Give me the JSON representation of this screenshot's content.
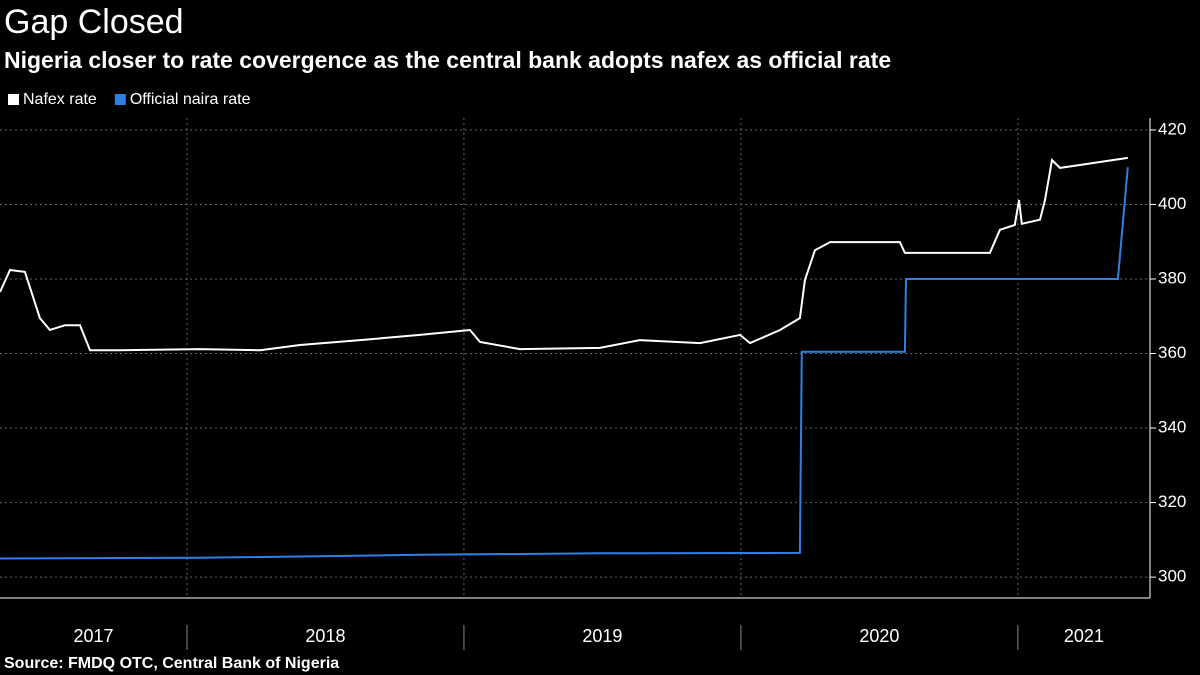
{
  "chart_data": {
    "type": "line",
    "title": "Gap Closed",
    "subtitle": "Nigeria closer to rate covergence as the central bank adopts nafex as official rate",
    "source": "Source: FMDQ OTC, Central Bank of Nigeria",
    "xlim": [
      2017.325,
      2021.477
    ],
    "xticks": [
      {
        "value": 2017,
        "label": "2017"
      },
      {
        "value": 2018,
        "label": "2018"
      },
      {
        "value": 2019,
        "label": "2019"
      },
      {
        "value": 2020,
        "label": "2020"
      },
      {
        "value": 2021,
        "label": "2021"
      }
    ],
    "ylim": [
      294.4,
      423.2
    ],
    "yticks": [
      300,
      320,
      340,
      360,
      380,
      400,
      420
    ],
    "grid": true,
    "series": [
      {
        "name": "Nafex rate",
        "color": "#ffffff",
        "x": [
          2017.325,
          2017.361,
          2017.415,
          2017.469,
          2017.505,
          2017.56,
          2017.614,
          2017.65,
          2017.758,
          2018.047,
          2018.264,
          2018.408,
          2018.625,
          2018.841,
          2019.022,
          2019.058,
          2019.202,
          2019.491,
          2019.635,
          2019.852,
          2019.997,
          2020.033,
          2020.141,
          2020.213,
          2020.231,
          2020.267,
          2020.322,
          2020.574,
          2020.592,
          2020.755,
          2020.899,
          2020.935,
          2020.989,
          2021.004,
          2021.014,
          2021.08,
          2021.098,
          2021.123,
          2021.152,
          2021.224,
          2021.296,
          2021.397
        ],
        "values": [
          376.5,
          382.4,
          381.9,
          369.5,
          366.3,
          367.6,
          367.6,
          360.9,
          360.9,
          361.2,
          360.9,
          362.3,
          363.6,
          365.0,
          366.3,
          363.1,
          361.2,
          361.5,
          363.6,
          362.8,
          365.0,
          362.8,
          366.3,
          369.5,
          379.7,
          387.7,
          389.9,
          389.9,
          387.0,
          387.0,
          387.0,
          393.2,
          394.5,
          401.2,
          394.8,
          395.9,
          401.2,
          411.9,
          409.8,
          410.6,
          411.4,
          412.5
        ]
      },
      {
        "name": "Official naira rate",
        "color": "#2f80e4",
        "x": [
          2017.325,
          2018.047,
          2018.841,
          2019.491,
          2020.213,
          2020.22,
          2020.592,
          2020.596,
          2021.361,
          2021.397
        ],
        "values": [
          305.0,
          305.2,
          306.0,
          306.4,
          306.5,
          360.5,
          360.5,
          380.0,
          380.0,
          410.0
        ]
      }
    ]
  }
}
